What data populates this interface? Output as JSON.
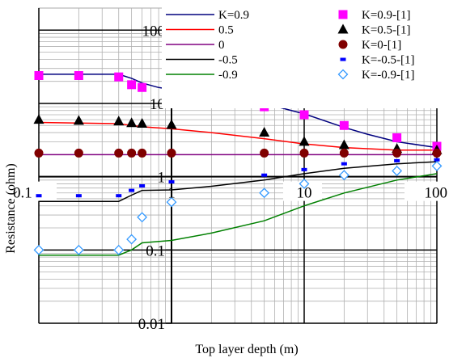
{
  "chart_data": {
    "type": "scatter",
    "xlabel": "Top layer depth (m)",
    "ylabel": "Resistance (ohm)",
    "x_scale": "log",
    "y_scale": "log",
    "xlim": [
      0.1,
      100
    ],
    "ylim": [
      0.01,
      200
    ],
    "grid": true,
    "legend_placement": "top-right",
    "x_ticks": [
      "0.1",
      "1",
      "10",
      "100"
    ],
    "y_ticks": [
      "0.01",
      "0.1",
      "1",
      "10",
      "100"
    ],
    "series": [
      {
        "name": "K=0.9",
        "kind": "line",
        "color": "#00007f",
        "x": [
          0.1,
          0.4,
          0.5,
          0.6,
          0.8,
          1,
          2,
          3,
          5,
          10,
          20,
          30,
          50,
          100
        ],
        "y": [
          25,
          25,
          22,
          19,
          16.5,
          15.5,
          13.5,
          12,
          10,
          7.2,
          4.7,
          3.8,
          3.0,
          2.5
        ]
      },
      {
        "name": "0.5",
        "kind": "line",
        "color": "#ff0000",
        "x": [
          0.1,
          0.4,
          0.5,
          0.6,
          1,
          2,
          5,
          10,
          20,
          50,
          100
        ],
        "y": [
          5.5,
          5.3,
          5.0,
          4.8,
          4.5,
          4.0,
          3.3,
          2.8,
          2.5,
          2.3,
          2.3
        ]
      },
      {
        "name": "0",
        "kind": "line",
        "color": "#800080",
        "x": [
          0.1,
          100
        ],
        "y": [
          2.0,
          2.0
        ]
      },
      {
        "name": "-0.5",
        "kind": "line",
        "color": "#000000",
        "x": [
          0.1,
          0.4,
          0.5,
          0.6,
          1,
          2,
          5,
          10,
          20,
          50,
          100
        ],
        "y": [
          0.46,
          0.46,
          0.56,
          0.65,
          0.66,
          0.74,
          0.9,
          1.1,
          1.3,
          1.5,
          1.6
        ]
      },
      {
        "name": "-0.9",
        "kind": "line",
        "color": "#008000",
        "x": [
          0.1,
          0.4,
          0.5,
          0.6,
          1,
          2,
          5,
          10,
          20,
          50,
          100
        ],
        "y": [
          0.085,
          0.085,
          0.1,
          0.125,
          0.135,
          0.17,
          0.25,
          0.4,
          0.6,
          0.9,
          1.1
        ]
      },
      {
        "name": "K=0.9-[1]",
        "kind": "marker",
        "marker": "square",
        "color": "#ff00ff",
        "x": [
          0.1,
          0.2,
          0.4,
          0.5,
          0.6,
          5,
          10,
          20,
          50,
          100
        ],
        "y": [
          24,
          24,
          23,
          18,
          16.5,
          9,
          7,
          5,
          3.4,
          2.6
        ]
      },
      {
        "name": "K=0.5-[1]",
        "kind": "marker",
        "marker": "triangle",
        "color": "#000000",
        "x": [
          0.1,
          0.2,
          0.4,
          0.5,
          0.6,
          1,
          5,
          10,
          20,
          50,
          100
        ],
        "y": [
          6,
          5.8,
          5.7,
          5.4,
          5.3,
          5.1,
          4,
          3,
          2.7,
          2.4,
          2.3
        ]
      },
      {
        "name": "K=0-[1]",
        "kind": "marker",
        "marker": "circle",
        "color": "#800000",
        "x": [
          0.1,
          0.2,
          0.4,
          0.5,
          0.6,
          1,
          5,
          10,
          20,
          50,
          100
        ],
        "y": [
          2.1,
          2.1,
          2.1,
          2.1,
          2.1,
          2.1,
          2.1,
          2.1,
          2.1,
          2.1,
          2.1
        ]
      },
      {
        "name": "K=-0.5-[1]",
        "kind": "marker",
        "marker": "dash",
        "color": "#0000ff",
        "x": [
          0.1,
          0.2,
          0.4,
          0.5,
          0.6,
          1,
          5,
          10,
          20,
          50,
          100
        ],
        "y": [
          0.55,
          0.55,
          0.55,
          0.65,
          0.75,
          0.85,
          1.05,
          1.25,
          1.5,
          1.65,
          1.7
        ]
      },
      {
        "name": "K=-0.9-[1]",
        "kind": "marker",
        "marker": "diamond",
        "color": "#3399ff",
        "x": [
          0.1,
          0.2,
          0.4,
          0.5,
          0.6,
          1,
          5,
          10,
          20,
          50,
          100
        ],
        "y": [
          0.1,
          0.1,
          0.1,
          0.14,
          0.28,
          0.45,
          0.6,
          0.8,
          1.05,
          1.2,
          1.4
        ]
      }
    ]
  }
}
